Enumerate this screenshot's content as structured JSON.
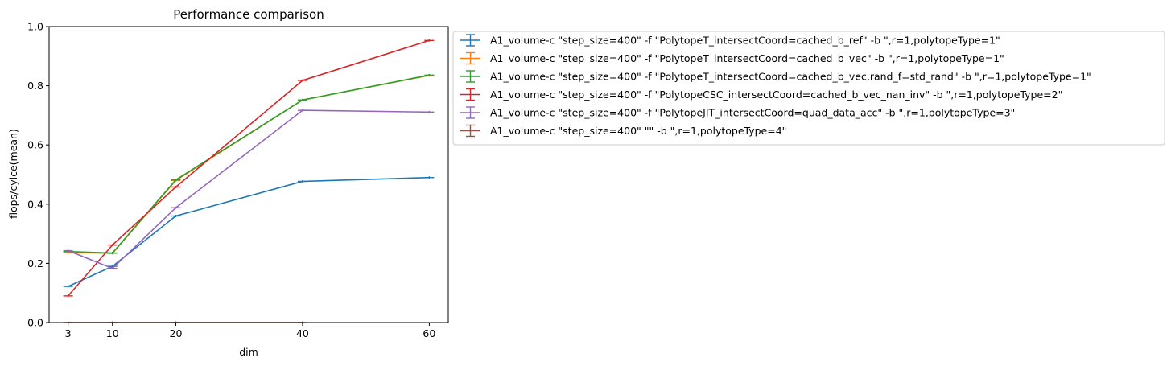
{
  "chart_data": {
    "type": "line",
    "title": "Performance comparison",
    "xlabel": "dim",
    "ylabel": "flops/cylce(mean)",
    "x": [
      3,
      10,
      20,
      40,
      60
    ],
    "xlim": [
      0,
      63
    ],
    "ylim": [
      0,
      1.0
    ],
    "xticks": [
      "3",
      "10",
      "20",
      "40",
      "60"
    ],
    "yticks": [
      "0.0",
      "0.2",
      "0.4",
      "0.6",
      "0.8",
      "1.0"
    ],
    "grid": false,
    "legend_position": "outside-right-top",
    "error_bars": true,
    "series": [
      {
        "name": "A1_volume-c \"step_size=400\" -f \"PolytopeT_intersectCoord=cached_b_ref\" -b \",r=1,polytopeType=1\"",
        "color": "#1f77b4",
        "values": [
          0.122,
          0.19,
          0.36,
          0.477,
          0.49
        ]
      },
      {
        "name": "A1_volume-c \"step_size=400\" -f \"PolytopeT_intersectCoord=cached_b_vec\" -b \",r=1,polytopeType=1\"",
        "color": "#ff7f0e",
        "values": [
          0.237,
          0.234,
          0.48,
          0.752,
          0.835
        ]
      },
      {
        "name": "A1_volume-c \"step_size=400\" -f \"PolytopeT_intersectCoord=cached_b_vec,rand_f=std_rand\" -b \",r=1,polytopeType=1\"",
        "color": "#2ca02c",
        "values": [
          0.24,
          0.235,
          0.482,
          0.752,
          0.836
        ]
      },
      {
        "name": "A1_volume-c \"step_size=400\" -f \"PolytopeCSC_intersectCoord=cached_b_vec_nan_inv\" -b \",r=1,polytopeType=2\"",
        "color": "#d62728",
        "values": [
          0.09,
          0.262,
          0.458,
          0.818,
          0.953
        ]
      },
      {
        "name": "A1_volume-c \"step_size=400\" -f \"PolytopeJIT_intersectCoord=quad_data_acc\" -b \",r=1,polytopeType=3\"",
        "color": "#9467bd",
        "values": [
          0.243,
          0.183,
          0.388,
          0.717,
          0.711
        ]
      },
      {
        "name": "A1_volume-c \"step_size=400\"  \"\" -b \",r=1,polytopeType=4\"",
        "color": "#8c564b",
        "x": [
          3,
          10,
          20,
          40
        ],
        "values": [
          0.0,
          0.0,
          0.0,
          0.0
        ]
      }
    ]
  }
}
